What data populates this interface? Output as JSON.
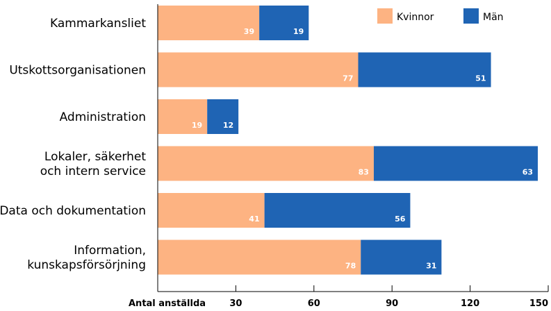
{
  "chart_data": {
    "type": "bar",
    "orientation": "horizontal",
    "stacked": true,
    "categories": [
      [
        "Kammarkansliet"
      ],
      [
        "Utskottsorganisationen"
      ],
      [
        "Administration"
      ],
      [
        "Lokaler, säkerhet",
        "och intern service"
      ],
      [
        "Data och dokumentation"
      ],
      [
        "Information,",
        "kunskapsförsörjning"
      ]
    ],
    "series": [
      {
        "name": "Kvinnor",
        "color": "#FDB382",
        "values": [
          39,
          77,
          19,
          83,
          41,
          78
        ]
      },
      {
        "name": "Män",
        "color": "#1F64B4",
        "values": [
          19,
          51,
          12,
          63,
          56,
          31
        ]
      }
    ],
    "xlabel": "Antal anställda",
    "xticks": [
      30,
      60,
      90,
      120,
      150
    ],
    "xlim": [
      0,
      150
    ],
    "grid": false,
    "legend_position": "top-right"
  }
}
